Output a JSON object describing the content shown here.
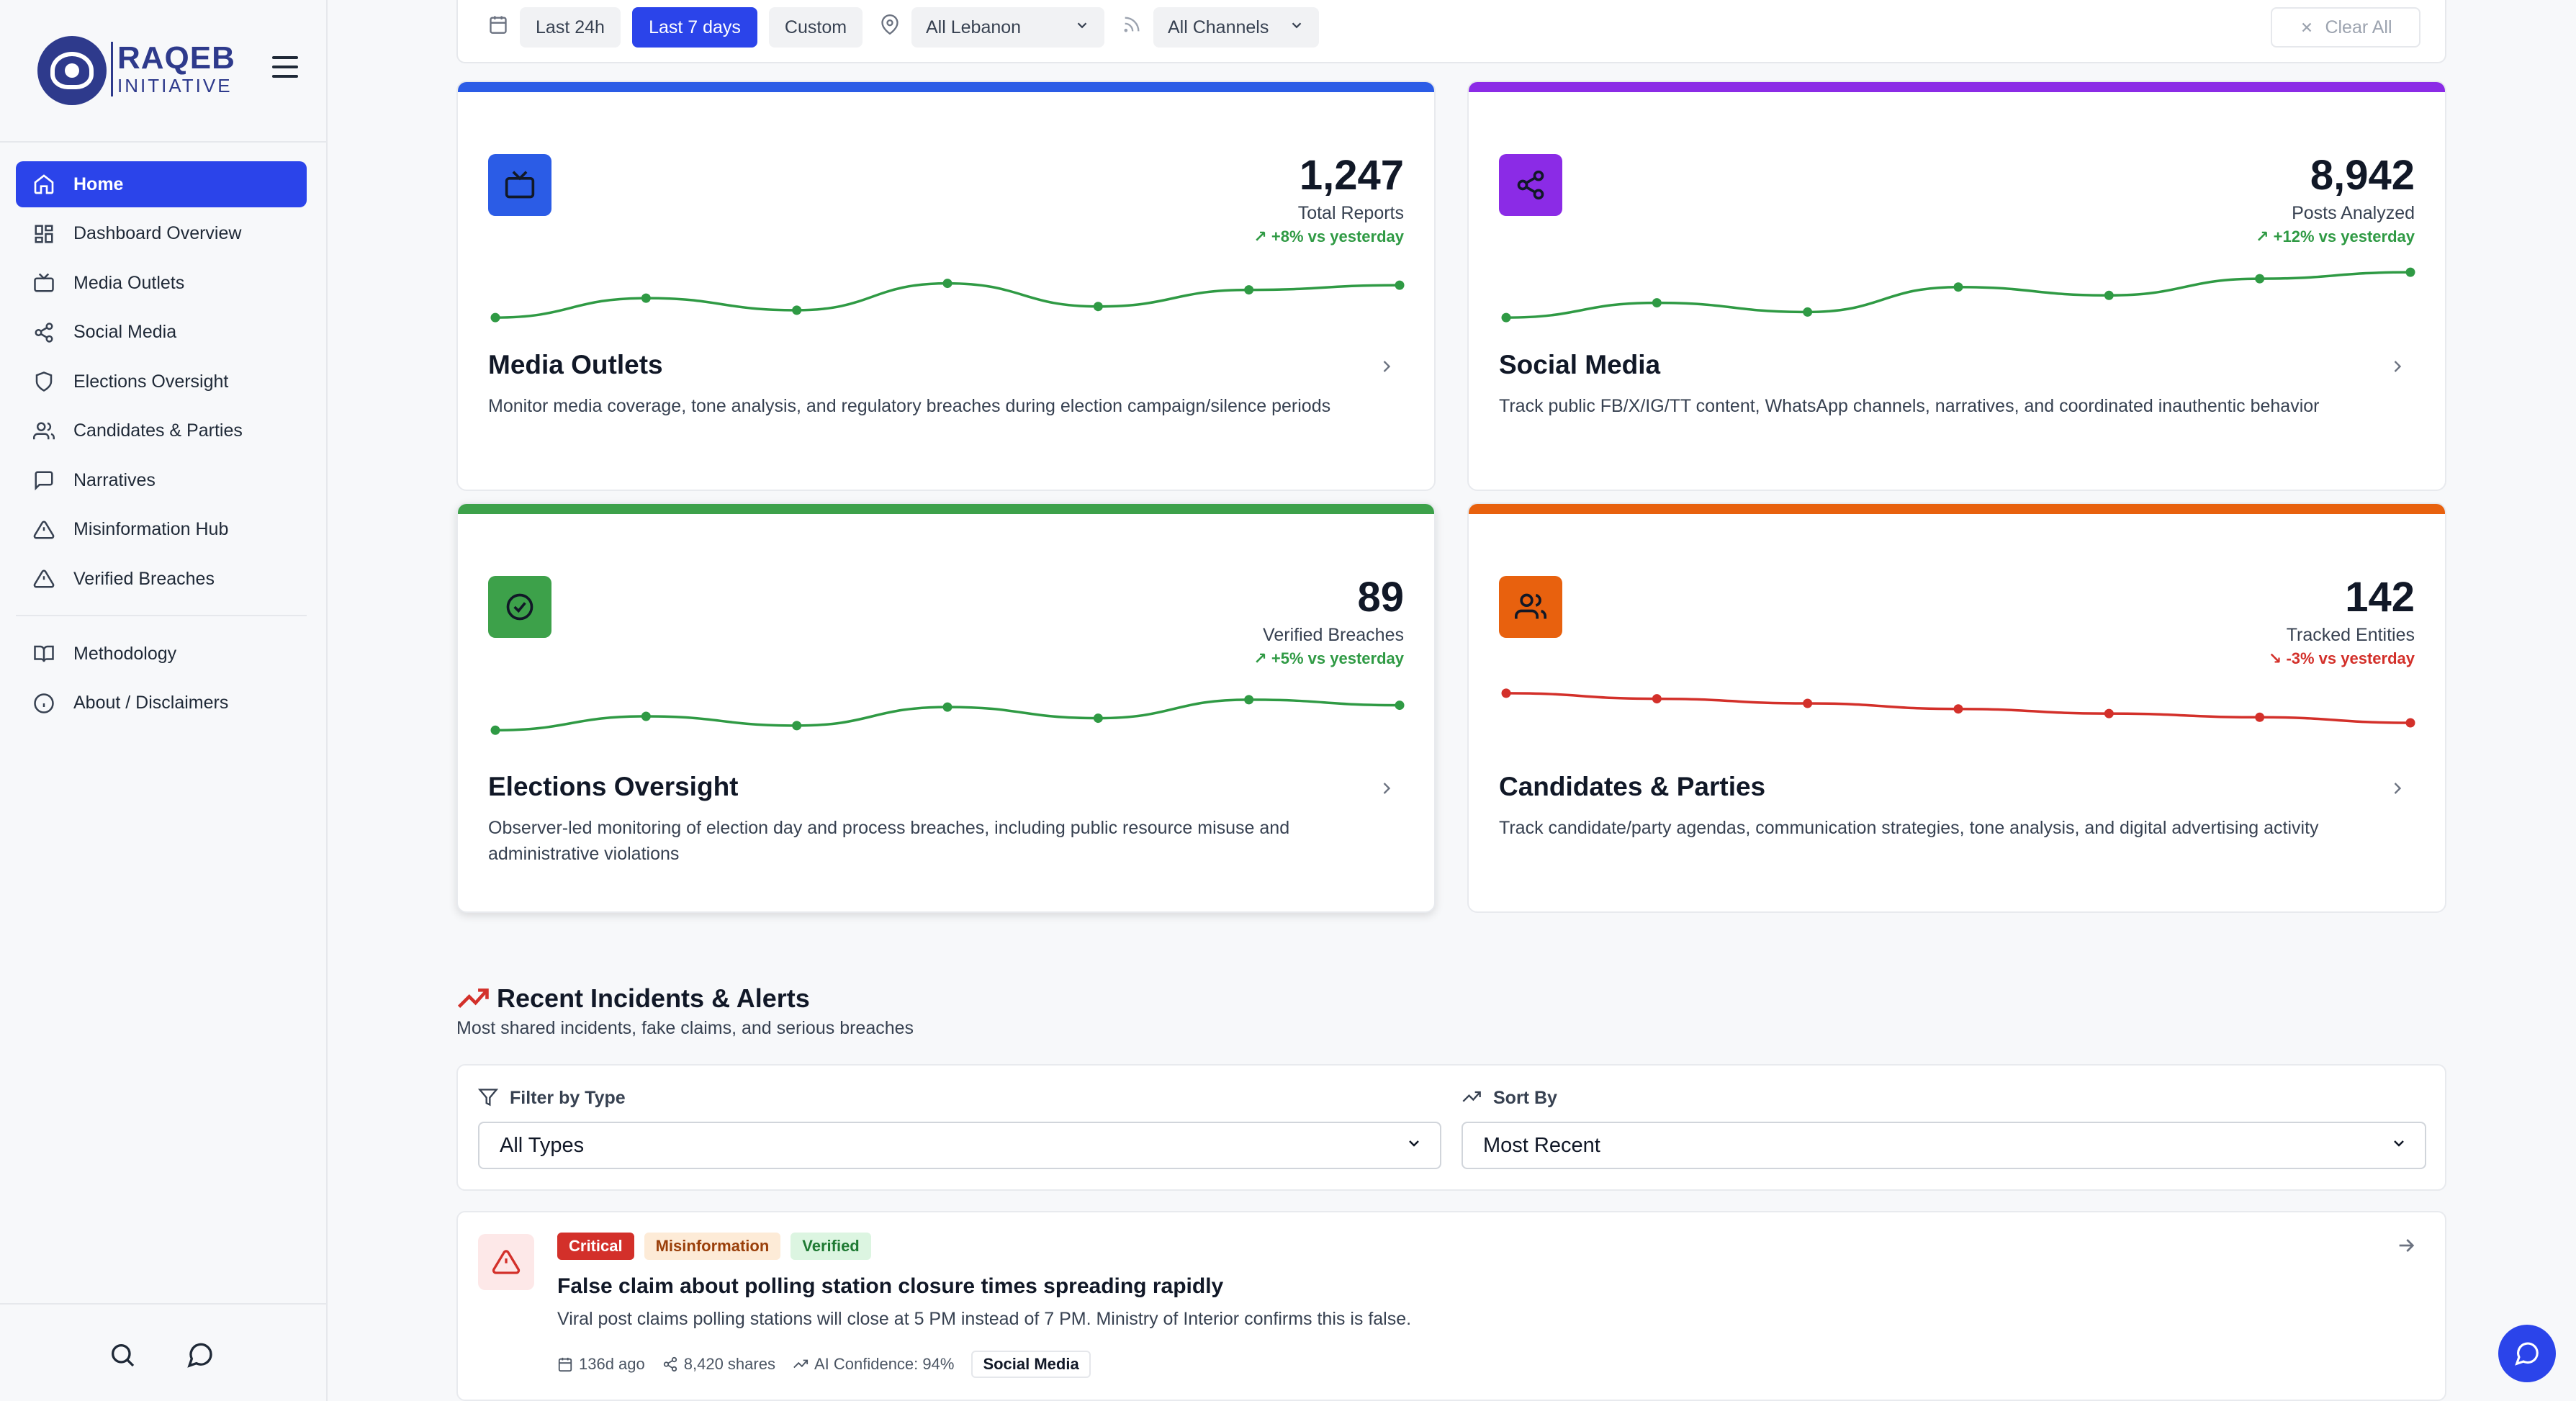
{
  "brand": {
    "name": "RAQEB",
    "sub": "INITIATIVE"
  },
  "nav": {
    "items": [
      {
        "label": "Home",
        "icon": "home-icon",
        "active": true
      },
      {
        "label": "Dashboard Overview",
        "icon": "grid-icon"
      },
      {
        "label": "Media Outlets",
        "icon": "tv-icon"
      },
      {
        "label": "Social Media",
        "icon": "share-icon"
      },
      {
        "label": "Elections Oversight",
        "icon": "shield-icon"
      },
      {
        "label": "Candidates & Parties",
        "icon": "users-icon"
      },
      {
        "label": "Narratives",
        "icon": "message-square-icon"
      },
      {
        "label": "Misinformation Hub",
        "icon": "alert-triangle-icon"
      },
      {
        "label": "Verified Breaches",
        "icon": "alert-triangle-icon"
      }
    ],
    "secondary": [
      {
        "label": "Methodology",
        "icon": "book-icon"
      },
      {
        "label": "About / Disclaimers",
        "icon": "info-icon"
      }
    ]
  },
  "filterbar": {
    "ranges": [
      "Last 24h",
      "Last 7 days",
      "Custom"
    ],
    "active_range": "Last 7 days",
    "region": "All Lebanon",
    "channels": "All Channels",
    "clear": "Clear All"
  },
  "colors": {
    "accent": "#2b44ea",
    "media": "#2b5ce6",
    "social": "#8b2be6",
    "elections": "#3da14a",
    "candidates": "#e8610e",
    "up": "#2f9a44",
    "down": "#d3302a"
  },
  "cards": [
    {
      "title": "Media Outlets",
      "value": "1,247",
      "label": "Total Reports",
      "change": "+8% vs yesterday",
      "trend": "up",
      "desc": "Monitor media coverage, tone analysis, and regulatory breaches during election campaign/silence periods",
      "icon": "tv-icon",
      "spark": [
        10,
        31,
        18,
        47,
        22,
        40,
        45
      ]
    },
    {
      "title": "Social Media",
      "value": "8,942",
      "label": "Posts Analyzed",
      "change": "+12% vs yesterday",
      "trend": "up",
      "desc": "Track public FB/X/IG/TT content, WhatsApp channels, narratives, and coordinated inauthentic behavior",
      "icon": "share-icon",
      "spark": [
        10,
        26,
        16,
        43,
        34,
        52,
        59
      ]
    },
    {
      "title": "Elections Oversight",
      "value": "89",
      "label": "Verified Breaches",
      "change": "+5% vs yesterday",
      "trend": "up",
      "desc": "Observer-led monitoring of election day and process breaches, including public resource misuse and administrative violations",
      "icon": "check-circle-icon",
      "spark": [
        20,
        35,
        25,
        45,
        33,
        53,
        47
      ]
    },
    {
      "title": "Candidates & Parties",
      "value": "142",
      "label": "Tracked Entities",
      "change": "-3% vs yesterday",
      "trend": "down",
      "desc": "Track candidate/party agendas, communication strategies, tone analysis, and digital advertising activity",
      "icon": "users-icon",
      "spark": [
        60,
        54,
        49,
        43,
        38,
        34,
        28
      ]
    }
  ],
  "recent": {
    "title": "Recent Incidents & Alerts",
    "subtitle": "Most shared incidents, fake claims, and serious breaches",
    "filter_label": "Filter by Type",
    "filter_value": "All Types",
    "sort_label": "Sort By",
    "sort_value": "Most Recent"
  },
  "incident": {
    "badges": [
      "Critical",
      "Misinformation",
      "Verified"
    ],
    "title": "False claim about polling station closure times spreading rapidly",
    "desc": "Viral post claims polling stations will close at 5 PM instead of 7 PM. Ministry of Interior confirms this is false.",
    "age": "136d ago",
    "shares": "8,420 shares",
    "confidence": "AI Confidence: 94%",
    "tag": "Social Media"
  }
}
